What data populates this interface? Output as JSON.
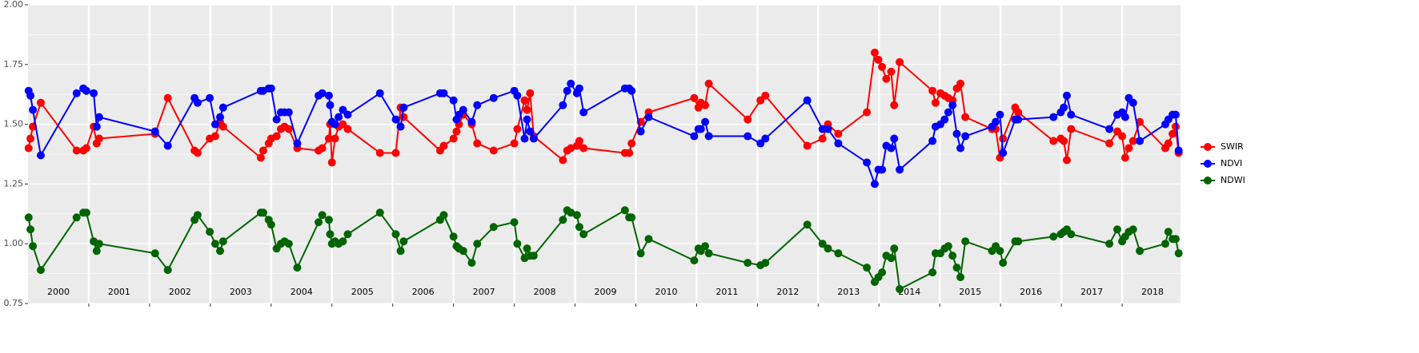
{
  "chart_data": {
    "type": "line",
    "x": [
      2000.01,
      2000.04,
      2000.08,
      2000.21,
      2000.8,
      2000.91,
      2000.96,
      2001.08,
      2001.13,
      2001.17,
      2002.09,
      2002.3,
      2002.74,
      2002.79,
      2002.99,
      2003.08,
      2003.16,
      2003.21,
      2003.83,
      2003.87,
      2003.96,
      2004.0,
      2004.09,
      2004.16,
      2004.22,
      2004.29,
      2004.43,
      2004.78,
      2004.84,
      2004.95,
      2004.97,
      2005.0,
      2005.05,
      2005.11,
      2005.18,
      2005.26,
      2005.79,
      2006.05,
      2006.13,
      2006.18,
      2006.78,
      2006.84,
      2007.0,
      2007.05,
      2007.09,
      2007.16,
      2007.3,
      2007.39,
      2007.66,
      2008.0,
      2008.05,
      2008.17,
      2008.21,
      2008.26,
      2008.32,
      2008.8,
      2008.87,
      2008.93,
      2009.03,
      2009.07,
      2009.14,
      2009.82,
      2009.89,
      2009.93,
      2010.08,
      2010.21,
      2010.96,
      2011.03,
      2011.07,
      2011.14,
      2011.2,
      2011.84,
      2012.05,
      2012.13,
      2012.82,
      2013.07,
      2013.16,
      2013.33,
      2013.8,
      2013.93,
      2013.99,
      2014.05,
      2014.12,
      2014.2,
      2014.25,
      2014.34,
      2014.88,
      2014.93,
      2015.01,
      2015.08,
      2015.14,
      2015.21,
      2015.28,
      2015.34,
      2015.42,
      2015.86,
      2015.92,
      2015.99,
      2016.04,
      2016.24,
      2016.29,
      2016.87,
      2016.99,
      2017.04,
      2017.09,
      2017.16,
      2017.79,
      2017.92,
      2018.0,
      2018.05,
      2018.11,
      2018.18,
      2018.29,
      2018.71,
      2018.76,
      2018.83,
      2018.88,
      2018.93
    ],
    "series": [
      {
        "name": "SWIR",
        "color": "#ff0000",
        "values": [
          1.4,
          1.44,
          1.49,
          1.59,
          1.39,
          1.39,
          1.4,
          1.49,
          1.42,
          1.44,
          1.46,
          1.61,
          1.39,
          1.38,
          1.44,
          1.45,
          1.51,
          1.49,
          1.36,
          1.39,
          1.42,
          1.44,
          1.45,
          1.48,
          1.49,
          1.48,
          1.4,
          1.39,
          1.4,
          1.44,
          1.5,
          1.34,
          1.44,
          1.49,
          1.5,
          1.48,
          1.38,
          1.38,
          1.57,
          1.53,
          1.39,
          1.41,
          1.44,
          1.47,
          1.5,
          1.54,
          1.5,
          1.42,
          1.39,
          1.42,
          1.48,
          1.6,
          1.56,
          1.63,
          1.45,
          1.35,
          1.39,
          1.4,
          1.41,
          1.43,
          1.4,
          1.38,
          1.38,
          1.42,
          1.51,
          1.55,
          1.61,
          1.57,
          1.59,
          1.58,
          1.67,
          1.52,
          1.6,
          1.62,
          1.41,
          1.44,
          1.5,
          1.46,
          1.55,
          1.8,
          1.77,
          1.74,
          1.69,
          1.72,
          1.58,
          1.76,
          1.64,
          1.59,
          1.63,
          1.62,
          1.61,
          1.6,
          1.65,
          1.67,
          1.53,
          1.48,
          1.48,
          1.36,
          1.44,
          1.57,
          1.55,
          1.43,
          1.44,
          1.43,
          1.35,
          1.48,
          1.42,
          1.47,
          1.45,
          1.36,
          1.4,
          1.43,
          1.51,
          1.4,
          1.42,
          1.46,
          1.49,
          1.38
        ]
      },
      {
        "name": "NDVI",
        "color": "#0000ff",
        "values": [
          1.64,
          1.62,
          1.56,
          1.37,
          1.63,
          1.65,
          1.64,
          1.63,
          1.49,
          1.53,
          1.47,
          1.41,
          1.61,
          1.59,
          1.61,
          1.5,
          1.53,
          1.57,
          1.64,
          1.64,
          1.65,
          1.65,
          1.52,
          1.55,
          1.55,
          1.55,
          1.42,
          1.62,
          1.63,
          1.62,
          1.58,
          1.51,
          1.5,
          1.53,
          1.56,
          1.54,
          1.63,
          1.52,
          1.49,
          1.57,
          1.63,
          1.63,
          1.6,
          1.52,
          1.54,
          1.56,
          1.51,
          1.58,
          1.61,
          1.64,
          1.62,
          1.44,
          1.52,
          1.47,
          1.44,
          1.58,
          1.64,
          1.67,
          1.63,
          1.65,
          1.55,
          1.65,
          1.65,
          1.64,
          1.47,
          1.53,
          1.45,
          1.48,
          1.48,
          1.51,
          1.45,
          1.45,
          1.42,
          1.44,
          1.6,
          1.48,
          1.48,
          1.42,
          1.34,
          1.25,
          1.31,
          1.31,
          1.41,
          1.4,
          1.44,
          1.31,
          1.43,
          1.49,
          1.5,
          1.52,
          1.55,
          1.58,
          1.46,
          1.4,
          1.45,
          1.49,
          1.51,
          1.54,
          1.38,
          1.52,
          1.52,
          1.53,
          1.55,
          1.57,
          1.62,
          1.54,
          1.48,
          1.54,
          1.55,
          1.53,
          1.61,
          1.59,
          1.43,
          1.5,
          1.52,
          1.54,
          1.54,
          1.39
        ]
      },
      {
        "name": "NDWI",
        "color": "#006400",
        "values": [
          1.11,
          1.06,
          0.99,
          0.89,
          1.11,
          1.13,
          1.13,
          1.01,
          0.97,
          1.0,
          0.96,
          0.89,
          1.1,
          1.12,
          1.05,
          1.0,
          0.97,
          1.01,
          1.13,
          1.13,
          1.1,
          1.08,
          0.98,
          1.0,
          1.01,
          1.0,
          0.9,
          1.09,
          1.12,
          1.1,
          1.04,
          1.0,
          1.01,
          1.0,
          1.01,
          1.04,
          1.13,
          1.04,
          0.97,
          1.01,
          1.1,
          1.12,
          1.03,
          0.99,
          0.98,
          0.97,
          0.92,
          1.0,
          1.07,
          1.09,
          1.0,
          0.94,
          0.98,
          0.95,
          0.95,
          1.1,
          1.14,
          1.13,
          1.12,
          1.07,
          1.04,
          1.14,
          1.11,
          1.11,
          0.96,
          1.02,
          0.93,
          0.98,
          0.97,
          0.99,
          0.96,
          0.92,
          0.91,
          0.92,
          1.08,
          1.0,
          0.98,
          0.96,
          0.9,
          0.84,
          0.86,
          0.88,
          0.95,
          0.94,
          0.98,
          0.81,
          0.88,
          0.96,
          0.96,
          0.98,
          0.99,
          0.95,
          0.9,
          0.86,
          1.01,
          0.97,
          0.99,
          0.97,
          0.92,
          1.01,
          1.01,
          1.03,
          1.04,
          1.05,
          1.06,
          1.04,
          1.0,
          1.06,
          1.01,
          1.03,
          1.05,
          1.06,
          0.97,
          1.0,
          1.05,
          1.02,
          1.02,
          0.96
        ]
      }
    ],
    "xlim": [
      2000,
      2018.96
    ],
    "ylim": [
      0.75,
      2.0
    ],
    "yticks": [
      {
        "value": 0.75,
        "label": "0.75"
      },
      {
        "value": 1.0,
        "label": "1.00"
      },
      {
        "value": 1.25,
        "label": "1.25"
      },
      {
        "value": 1.5,
        "label": "1.50"
      },
      {
        "value": 1.75,
        "label": "1.75"
      },
      {
        "value": 2.0,
        "label": "2.00"
      }
    ],
    "year_lines": [
      2001,
      2002,
      2003,
      2004,
      2005,
      2006,
      2007,
      2008,
      2009,
      2010,
      2011,
      2012,
      2013,
      2014,
      2015,
      2016,
      2017,
      2018
    ],
    "year_labels": [
      {
        "value": 2000.5,
        "label": "2000"
      },
      {
        "value": 2001.5,
        "label": "2001"
      },
      {
        "value": 2002.5,
        "label": "2002"
      },
      {
        "value": 2003.5,
        "label": "2003"
      },
      {
        "value": 2004.5,
        "label": "2004"
      },
      {
        "value": 2005.5,
        "label": "2005"
      },
      {
        "value": 2006.5,
        "label": "2006"
      },
      {
        "value": 2007.5,
        "label": "2007"
      },
      {
        "value": 2008.5,
        "label": "2008"
      },
      {
        "value": 2009.5,
        "label": "2009"
      },
      {
        "value": 2010.5,
        "label": "2010"
      },
      {
        "value": 2011.5,
        "label": "2011"
      },
      {
        "value": 2012.5,
        "label": "2012"
      },
      {
        "value": 2013.5,
        "label": "2013"
      },
      {
        "value": 2014.5,
        "label": "2014"
      },
      {
        "value": 2015.5,
        "label": "2015"
      },
      {
        "value": 2016.5,
        "label": "2016"
      },
      {
        "value": 2017.5,
        "label": "2017"
      },
      {
        "value": 2018.5,
        "label": "2018"
      }
    ],
    "grid": true,
    "legend": "right"
  }
}
